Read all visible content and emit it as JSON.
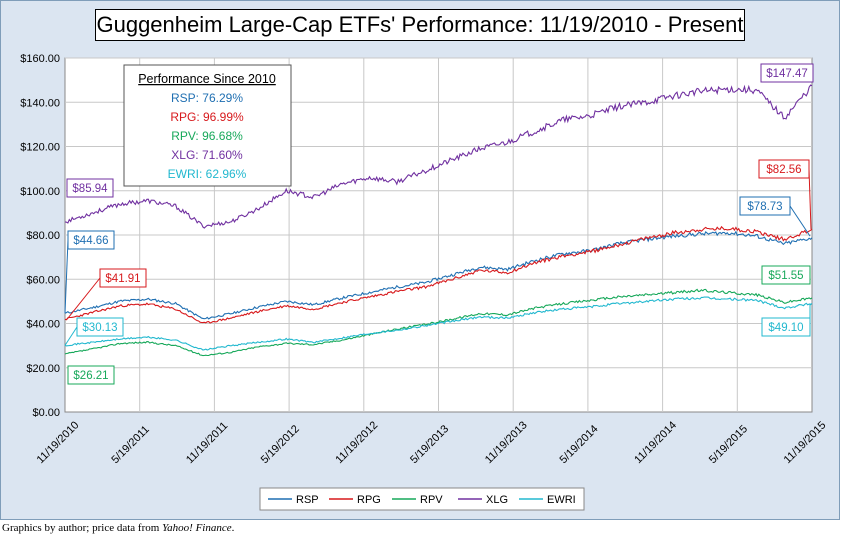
{
  "title": "Guggenheim Large-Cap ETFs' Performance: 11/19/2010 - Present",
  "credit": {
    "prefix": "Graphics by author; price data from ",
    "source": "Yahoo! Finance",
    "suffix": "."
  },
  "colors": {
    "RSP": "#1f6fb2",
    "RPG": "#d7191c",
    "RPV": "#17a85a",
    "XLG": "#7030a0",
    "EWRI": "#22b8cf",
    "plot_bg": "#ffffff",
    "frame_bg": "#dbe5f1",
    "grid": "#c8c8c8"
  },
  "performance_box": {
    "header": "Performance Since 2010",
    "rows": [
      {
        "ticker": "RSP",
        "text": "RSP: 76.29%"
      },
      {
        "ticker": "RPG",
        "text": "RPG: 96.99%"
      },
      {
        "ticker": "RPV",
        "text": "RPV: 96.68%"
      },
      {
        "ticker": "XLG",
        "text": "XLG: 71.60%"
      },
      {
        "ticker": "EWRI",
        "text": "EWRI: 62.96%"
      }
    ]
  },
  "chart_data": {
    "type": "line",
    "title": "Guggenheim Large-Cap ETFs' Performance: 11/19/2010 - Present",
    "xlabel": "",
    "ylabel": "",
    "ylim": [
      0,
      160
    ],
    "y_ticks": [
      0,
      20,
      40,
      60,
      80,
      100,
      120,
      140,
      160
    ],
    "y_tick_labels": [
      "$0.00",
      "$20.00",
      "$40.00",
      "$60.00",
      "$80.00",
      "$100.00",
      "$120.00",
      "$140.00",
      "$160.00"
    ],
    "x_ticks": [
      "11/19/2010",
      "5/19/2011",
      "11/19/2011",
      "5/19/2012",
      "11/19/2012",
      "5/19/2013",
      "11/19/2013",
      "5/19/2014",
      "11/19/2014",
      "5/19/2015",
      "11/19/2015"
    ],
    "grid": true,
    "legend_position": "bottom",
    "series": [
      {
        "name": "RSP",
        "start_label": "$44.66",
        "end_label": "$78.73",
        "values": [
          44.66,
          47.2,
          50.1,
          51.0,
          49.0,
          42.0,
          44.5,
          47.5,
          50.0,
          48.5,
          51.5,
          54.0,
          56.5,
          58.5,
          62.0,
          65.5,
          64.5,
          68.5,
          71.5,
          73.0,
          76.0,
          78.0,
          79.5,
          80.5,
          81.0,
          79.5,
          76.0,
          78.73
        ]
      },
      {
        "name": "RPG",
        "start_label": "$41.91",
        "end_label": "$82.56",
        "values": [
          41.91,
          45.0,
          48.0,
          48.8,
          46.5,
          40.0,
          42.5,
          45.5,
          48.0,
          46.5,
          49.5,
          52.0,
          54.5,
          56.5,
          60.0,
          64.0,
          63.0,
          67.5,
          70.5,
          72.5,
          75.5,
          78.5,
          81.0,
          82.5,
          83.0,
          81.5,
          78.0,
          82.56
        ]
      },
      {
        "name": "RPV",
        "start_label": "$26.21",
        "end_label": "$51.55",
        "values": [
          26.21,
          28.5,
          31.0,
          31.5,
          30.0,
          25.5,
          27.0,
          29.5,
          31.0,
          30.5,
          32.5,
          35.0,
          37.5,
          39.5,
          42.0,
          44.5,
          44.0,
          47.0,
          49.0,
          50.5,
          52.0,
          53.0,
          54.0,
          55.0,
          54.0,
          53.0,
          49.5,
          51.55
        ]
      },
      {
        "name": "XLG",
        "start_label": "$85.94",
        "end_label": "$147.47",
        "values": [
          85.94,
          90.0,
          94.0,
          95.5,
          93.0,
          84.0,
          86.0,
          92.0,
          100.0,
          97.0,
          103.0,
          106.0,
          104.0,
          109.0,
          114.0,
          119.0,
          122.0,
          127.0,
          132.0,
          134.0,
          138.0,
          140.0,
          143.0,
          145.0,
          146.0,
          145.5,
          133.0,
          147.47
        ]
      },
      {
        "name": "EWRI",
        "start_label": "$30.13",
        "end_label": "$49.10",
        "values": [
          30.13,
          31.5,
          33.0,
          33.8,
          32.5,
          28.0,
          30.0,
          31.5,
          33.0,
          31.5,
          33.5,
          35.5,
          37.0,
          39.0,
          41.0,
          43.0,
          42.5,
          45.0,
          46.5,
          47.5,
          49.0,
          50.0,
          51.0,
          51.5,
          51.0,
          50.5,
          47.0,
          49.1
        ]
      }
    ]
  }
}
